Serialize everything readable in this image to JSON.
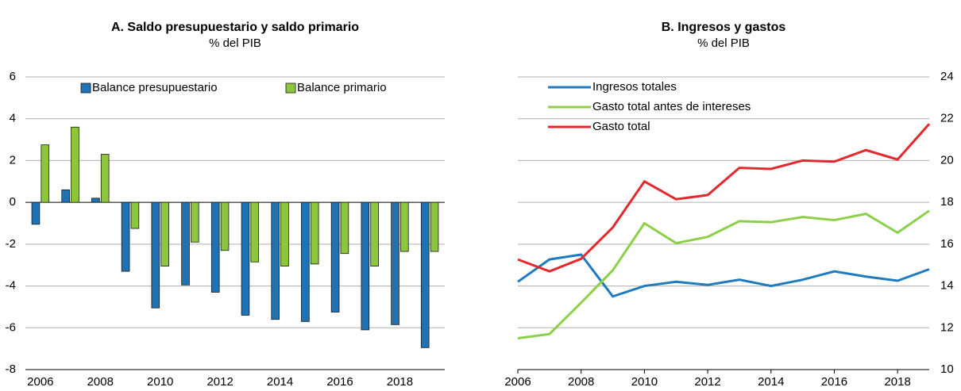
{
  "chart_data": [
    {
      "type": "bar",
      "title": "A. Saldo presupuestario y saldo primario",
      "subtitle": "% del PIB",
      "categories": [
        "2006",
        null,
        "2008",
        null,
        "2010",
        null,
        "2012",
        null,
        "2014",
        null,
        "2016",
        null,
        "2018",
        null
      ],
      "series": [
        {
          "name": "Balance presupuestario",
          "color": "#1f72b3",
          "values": [
            -1.05,
            0.6,
            0.2,
            -3.3,
            -5.05,
            -3.95,
            -4.3,
            -5.4,
            -5.6,
            -5.7,
            -5.25,
            -6.1,
            -5.85,
            -6.95
          ]
        },
        {
          "name": "Balance primario",
          "color": "#8cc63f",
          "values": [
            2.75,
            3.6,
            2.3,
            -1.25,
            -3.05,
            -1.9,
            -2.3,
            -2.85,
            -3.05,
            -2.95,
            -2.45,
            -3.05,
            -2.35,
            -2.35
          ]
        }
      ],
      "ylim": [
        -8,
        6
      ],
      "yticks": [
        -8,
        -6,
        -4,
        -2,
        0,
        2,
        4,
        6
      ],
      "grid": true,
      "legend": "top",
      "y_axis_position": "left"
    },
    {
      "type": "line",
      "title": "B. Ingresos y gastos",
      "subtitle": "% del PIB",
      "x": [
        2006,
        2007,
        2008,
        2009,
        2010,
        2011,
        2012,
        2013,
        2014,
        2015,
        2016,
        2017,
        2018,
        2019
      ],
      "series": [
        {
          "name": "Ingresos totales",
          "color": "#1f7bc0",
          "values": [
            14.2,
            15.27,
            15.5,
            13.5,
            14.0,
            14.2,
            14.05,
            14.3,
            14.0,
            14.3,
            14.7,
            14.45,
            14.25,
            14.8
          ]
        },
        {
          "name": "Gasto total antes de intereses",
          "color": "#8cd04a",
          "values": [
            11.5,
            11.7,
            13.2,
            14.75,
            17.0,
            16.05,
            16.35,
            17.1,
            17.05,
            17.3,
            17.15,
            17.45,
            16.55,
            17.6
          ]
        },
        {
          "name": "Gasto total",
          "color": "#e3292e",
          "values": [
            15.27,
            14.7,
            15.3,
            16.8,
            19.0,
            18.15,
            18.35,
            19.65,
            19.6,
            20.0,
            19.95,
            20.5,
            20.05,
            21.75
          ]
        }
      ],
      "xlim": [
        2006,
        2019
      ],
      "xticks": [
        2006,
        2008,
        2010,
        2012,
        2014,
        2016,
        2018
      ],
      "ylim": [
        10,
        24
      ],
      "yticks": [
        10,
        12,
        14,
        16,
        18,
        20,
        22,
        24
      ],
      "grid": true,
      "legend": "upper left",
      "y_axis_position": "right"
    }
  ]
}
